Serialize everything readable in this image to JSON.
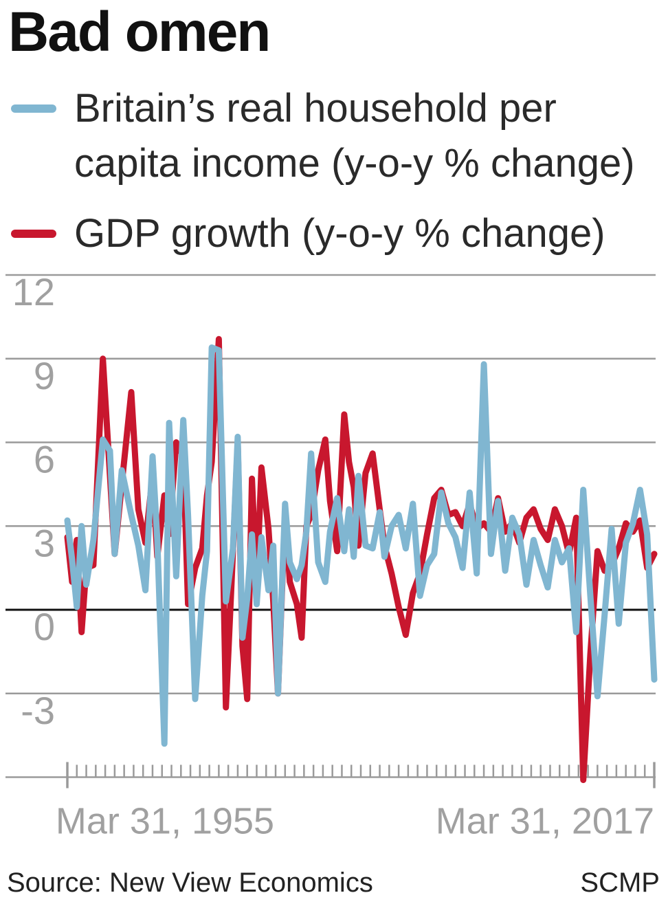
{
  "title": "Bad omen",
  "source": "Source: New View Economics",
  "credit": "SCMP",
  "chart_data": {
    "type": "line",
    "title": "Bad omen",
    "xlabel": "",
    "ylabel": "",
    "ylim": [
      -6,
      12
    ],
    "y_ticks": [
      12,
      9,
      6,
      3,
      0,
      -3
    ],
    "x_tick_labels": [
      "Mar 31, 1955",
      "Mar 31, 2017"
    ],
    "grid": true,
    "legend": "top",
    "series": [
      {
        "name": "Britain’s real household per capita income (y-o-y % change)",
        "color": "#80b6d1",
        "x": [
          1955.25,
          1955.75,
          1956.25,
          1956.75,
          1957.25,
          1958.0,
          1959.0,
          1959.75,
          1960.25,
          1961.0,
          1962.0,
          1962.75,
          1963.5,
          1964.25,
          1964.75,
          1965.5,
          1966.0,
          1966.75,
          1967.5,
          1968.0,
          1968.75,
          1969.5,
          1970.0,
          1970.5,
          1971.25,
          1972.0,
          1972.75,
          1973.25,
          1973.75,
          1974.25,
          1974.75,
          1975.25,
          1975.75,
          1976.5,
          1977.0,
          1977.5,
          1978.25,
          1978.75,
          1979.5,
          1980.0,
          1980.5,
          1981.0,
          1981.75,
          1982.5,
          1983.0,
          1983.75,
          1984.5,
          1985.0,
          1985.5,
          1986.0,
          1986.75,
          1987.5,
          1988.25,
          1988.75,
          1989.5,
          1990.25,
          1991.0,
          1991.75,
          1992.5,
          1993.25,
          1994.0,
          1994.75,
          1995.5,
          1996.25,
          1997.0,
          1997.75,
          1998.5,
          1999.25,
          2000.0,
          2000.75,
          2001.5,
          2002.25,
          2003.0,
          2003.75,
          2004.5,
          2005.25,
          2006.0,
          2006.75,
          2007.5,
          2008.25,
          2009.0,
          2009.75,
          2010.5,
          2011.25,
          2012.0,
          2012.75,
          2013.5,
          2014.25,
          2015.0,
          2015.75,
          2016.5,
          2017.25
        ],
        "values": [
          3.2,
          1.8,
          0.1,
          3.0,
          0.9,
          2.5,
          6.1,
          5.7,
          2.0,
          5.0,
          3.4,
          2.3,
          0.7,
          5.5,
          2.5,
          -4.8,
          6.7,
          1.2,
          6.8,
          3.4,
          -3.2,
          0.5,
          2.1,
          9.4,
          9.3,
          0.3,
          2.2,
          6.2,
          -1.0,
          0.4,
          2.7,
          0.2,
          2.6,
          0.7,
          2.3,
          -3.0,
          3.8,
          1.7,
          1.1,
          1.6,
          2.8,
          5.6,
          1.7,
          1.0,
          2.8,
          4.0,
          2.1,
          3.6,
          1.9,
          4.8,
          2.3,
          2.2,
          3.5,
          1.9,
          3.0,
          3.4,
          2.2,
          3.8,
          0.5,
          1.6,
          2.0,
          4.2,
          3.1,
          2.6,
          1.5,
          4.2,
          1.3,
          8.8,
          2.0,
          3.9,
          1.4,
          3.3,
          2.7,
          0.9,
          2.5,
          1.6,
          0.8,
          2.5,
          1.7,
          2.2,
          -0.8,
          4.3,
          0.5,
          -3.1,
          -0.2,
          2.9,
          -0.5,
          2.4,
          3.1,
          4.3,
          2.7,
          -2.5
        ]
      },
      {
        "name": "GDP growth (y-o-y % change)",
        "color": "#c8172e",
        "x": [
          1955.25,
          1955.75,
          1956.25,
          1956.75,
          1957.25,
          1958.0,
          1959.0,
          1959.75,
          1960.25,
          1961.0,
          1962.0,
          1962.75,
          1963.5,
          1964.25,
          1964.75,
          1965.5,
          1966.0,
          1966.75,
          1967.5,
          1968.0,
          1968.75,
          1969.5,
          1970.0,
          1970.5,
          1971.25,
          1972.0,
          1972.75,
          1973.25,
          1973.75,
          1974.25,
          1974.75,
          1975.25,
          1975.75,
          1976.5,
          1977.0,
          1977.5,
          1978.25,
          1978.75,
          1979.5,
          1980.0,
          1980.5,
          1981.0,
          1981.75,
          1982.5,
          1983.0,
          1983.75,
          1984.5,
          1985.0,
          1985.5,
          1986.0,
          1986.75,
          1987.5,
          1988.25,
          1988.75,
          1989.5,
          1990.25,
          1991.0,
          1991.75,
          1992.5,
          1993.25,
          1994.0,
          1994.75,
          1995.5,
          1996.25,
          1997.0,
          1997.75,
          1998.5,
          1999.25,
          2000.0,
          2000.75,
          2001.5,
          2002.25,
          2003.0,
          2003.75,
          2004.5,
          2005.25,
          2006.0,
          2006.75,
          2007.5,
          2008.25,
          2009.0,
          2009.75,
          2010.5,
          2011.25,
          2012.0,
          2012.75,
          2013.5,
          2014.25,
          2015.0,
          2015.75,
          2016.5,
          2017.25
        ],
        "values": [
          2.6,
          1.0,
          2.5,
          -0.8,
          1.5,
          1.6,
          9.0,
          4.8,
          2.0,
          4.5,
          7.8,
          3.6,
          2.4,
          4.8,
          1.9,
          4.1,
          2.7,
          6.0,
          5.5,
          0.2,
          1.5,
          2.2,
          4.1,
          5.3,
          9.7,
          -3.5,
          2.1,
          6.0,
          -1.3,
          -3.2,
          4.7,
          0.8,
          5.1,
          2.9,
          0.3,
          -3.0,
          3.5,
          1.0,
          0.2,
          -1.0,
          3.0,
          3.4,
          5.0,
          6.1,
          3.9,
          2.1,
          7.0,
          5.3,
          4.4,
          2.3,
          4.9,
          5.6,
          3.6,
          2.3,
          1.3,
          0.1,
          -0.9,
          0.6,
          1.3,
          2.7,
          4.0,
          4.3,
          3.4,
          3.5,
          3.0,
          3.8,
          2.9,
          3.1,
          2.8,
          4.0,
          2.8,
          3.1,
          2.4,
          3.3,
          3.6,
          2.9,
          2.5,
          3.6,
          3.0,
          2.0,
          3.3,
          -6.1,
          -1.6,
          2.1,
          1.4,
          1.6,
          2.2,
          3.1,
          2.8,
          3.2,
          1.5,
          2.0
        ]
      }
    ]
  }
}
